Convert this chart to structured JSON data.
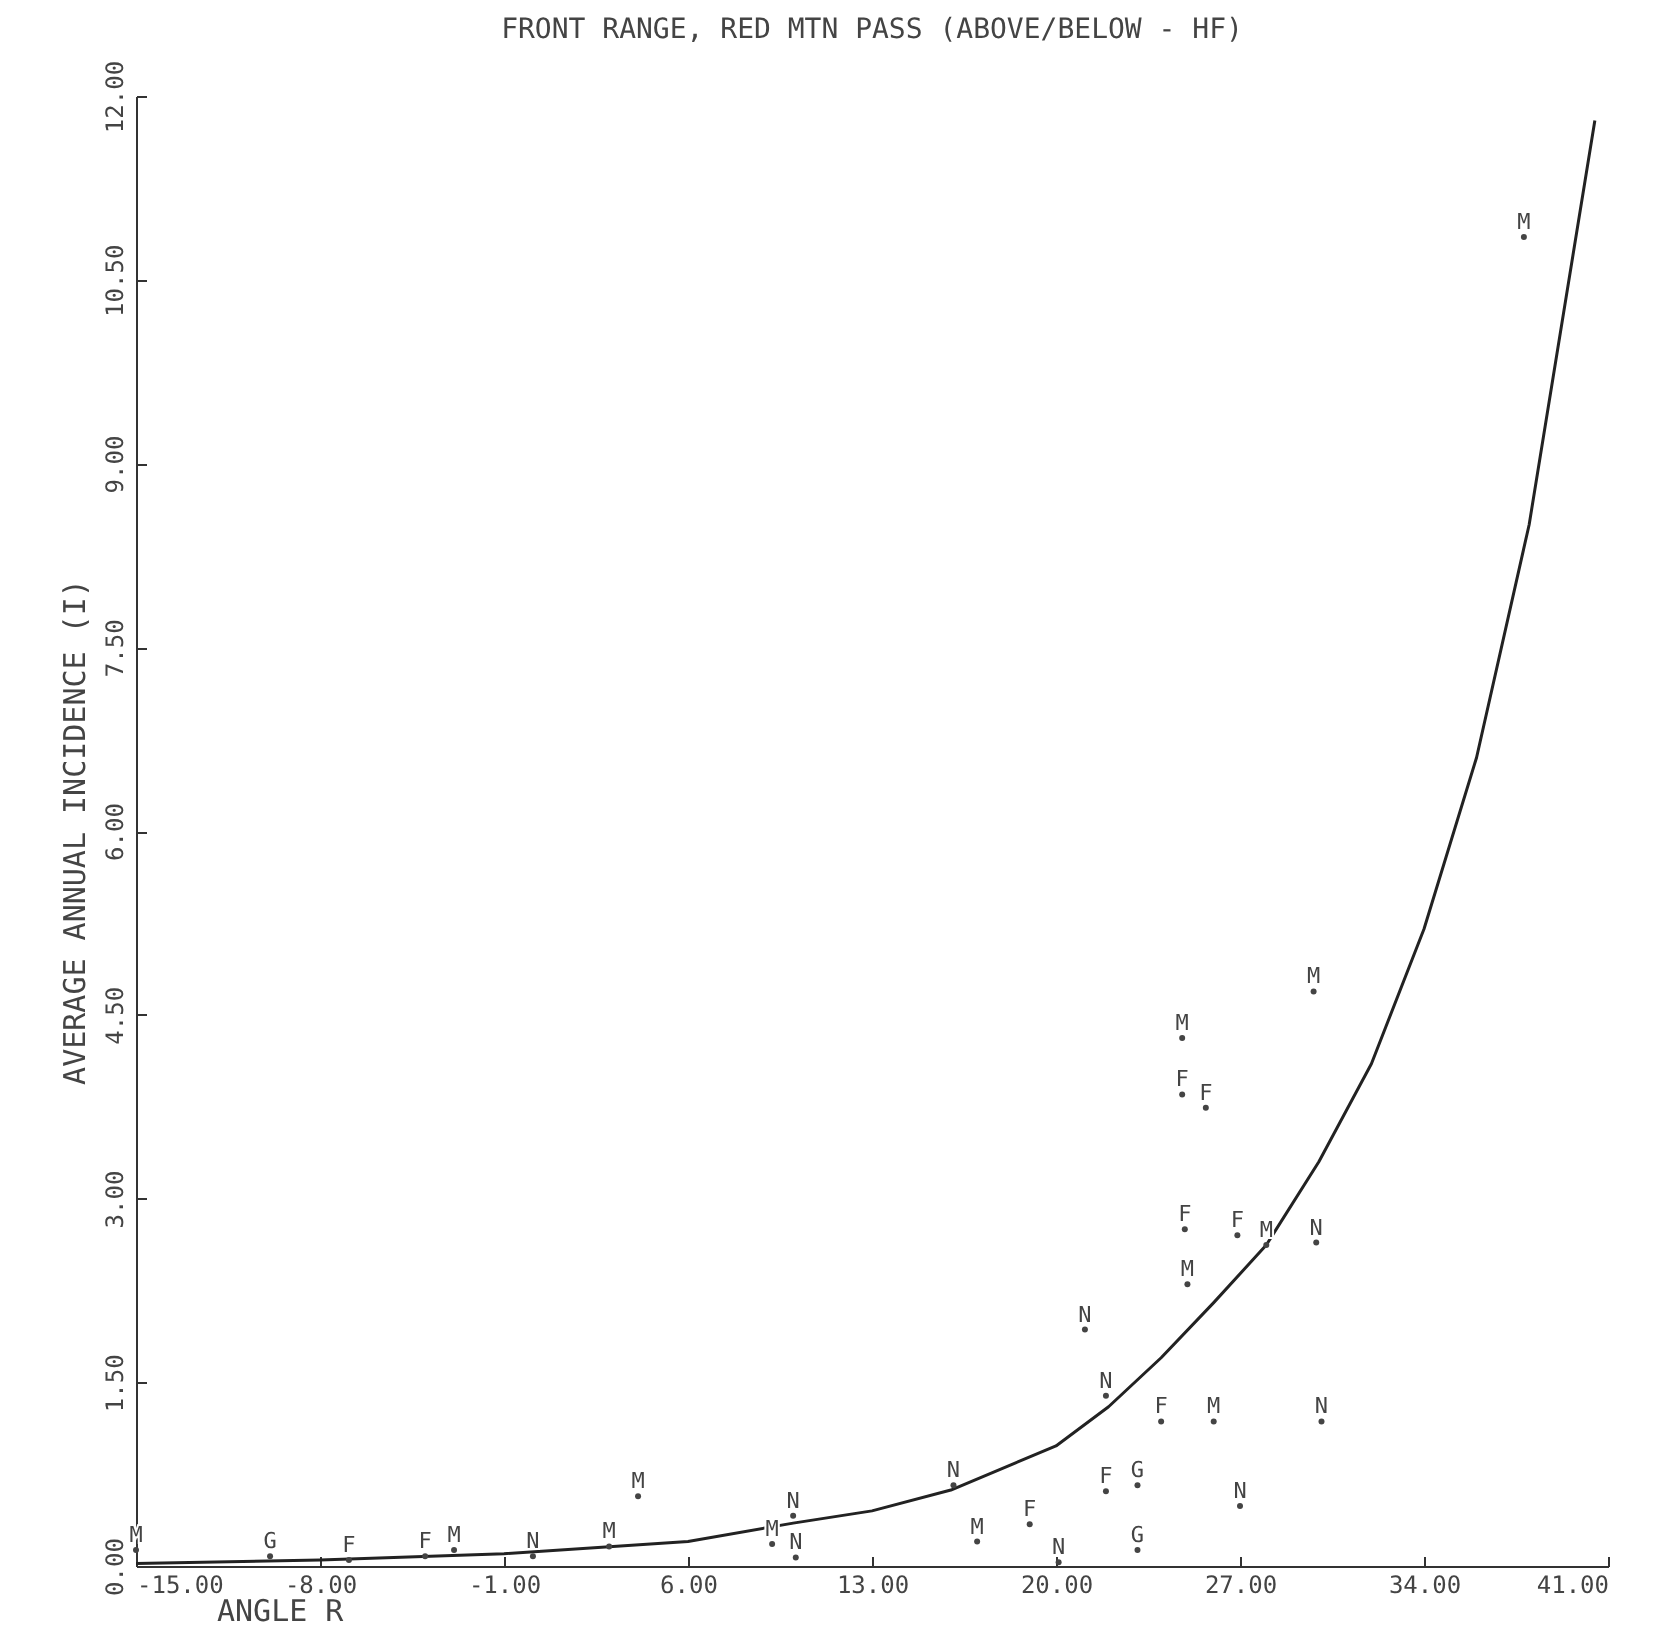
{
  "chart_data": {
    "type": "scatter",
    "title": "FRONT RANGE, RED MTN PASS    (ABOVE/BELOW - HF)",
    "xlabel": "ANGLE R",
    "ylabel": "AVERAGE ANNUAL INCIDENCE (I)",
    "xlim": [
      -15,
      41
    ],
    "ylim": [
      0,
      12
    ],
    "xticks": [
      {
        "value": -15,
        "label": "-15.00"
      },
      {
        "value": -8,
        "label": "-8.00"
      },
      {
        "value": -1,
        "label": "-1.00"
      },
      {
        "value": 6,
        "label": "6.00"
      },
      {
        "value": 13,
        "label": "13.00"
      },
      {
        "value": 20,
        "label": "20.00"
      },
      {
        "value": 27,
        "label": "27.00"
      },
      {
        "value": 34,
        "label": "34.00"
      },
      {
        "value": 41,
        "label": "41.00"
      }
    ],
    "yticks": [
      {
        "value": 0,
        "label": "0.00"
      },
      {
        "value": 1.5,
        "label": "1.50"
      },
      {
        "value": 3,
        "label": "3.00"
      },
      {
        "value": 4.5,
        "label": "4.50"
      },
      {
        "value": 6,
        "label": "6.00"
      },
      {
        "value": 7.5,
        "label": "7.50"
      },
      {
        "value": 9,
        "label": "9.00"
      },
      {
        "value": 10.5,
        "label": "10.50"
      },
      {
        "value": 12,
        "label": "12.00"
      }
    ],
    "series": [
      {
        "type": "line",
        "color": "#222222",
        "x": [
          -15,
          -8,
          -1,
          6,
          10,
          13,
          16,
          20,
          22,
          24,
          26,
          28,
          30,
          32,
          34,
          36,
          38,
          40.5
        ],
        "values": [
          0.02,
          0.05,
          0.1,
          0.2,
          0.35,
          0.45,
          0.62,
          0.98,
          1.3,
          1.7,
          2.15,
          2.62,
          3.3,
          4.1,
          5.2,
          6.6,
          8.5,
          11.8
        ]
      },
      {
        "name": "N",
        "color": "#444444",
        "x": [
          0.1,
          10.0,
          10.1,
          16.1,
          20.1,
          27.0,
          30.1,
          21.9,
          21.1,
          29.9
        ],
        "values": [
          0.08,
          0.41,
          0.07,
          0.66,
          0.03,
          0.49,
          1.18,
          1.39,
          1.93,
          2.64
        ]
      },
      {
        "name": "F",
        "color": "#444444",
        "x": [
          -6.9,
          -4.0,
          19.0,
          21.9,
          24.0,
          24.9,
          26.9,
          24.8,
          25.7
        ],
        "values": [
          0.05,
          0.08,
          0.34,
          0.61,
          1.18,
          2.75,
          2.7,
          3.85,
          3.74
        ]
      },
      {
        "name": "G",
        "color": "#444444",
        "x": [
          -9.9,
          23.1,
          23.1
        ],
        "values": [
          0.08,
          0.66,
          0.13
        ]
      },
      {
        "name": "M",
        "color": "#444444",
        "x": [
          -15,
          -2.9,
          3.0,
          4.1,
          9.2,
          17.0,
          26.0,
          25.0,
          28.0,
          29.8,
          24.8,
          37.8
        ],
        "values": [
          0.13,
          0.13,
          0.16,
          0.57,
          0.18,
          0.2,
          1.18,
          2.3,
          2.62,
          4.69,
          4.31,
          10.85
        ]
      }
    ]
  }
}
